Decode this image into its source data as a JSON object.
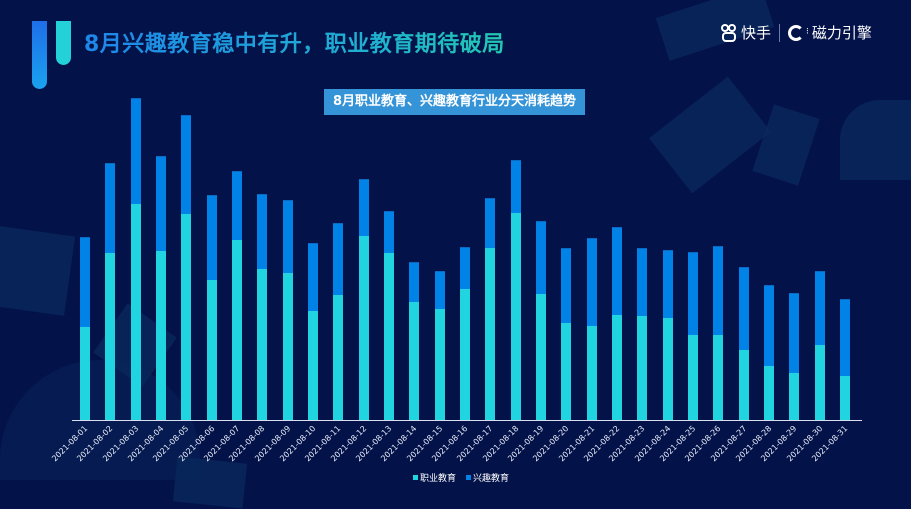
{
  "header": {
    "title": "8月兴趣教育稳中有升，职业教育期待破局",
    "brand_primary": "快手",
    "brand_secondary": "磁力引擎"
  },
  "colors": {
    "background": "#04124a",
    "series_vocational": "#20d4e0",
    "series_interest": "#0082e6",
    "subtitle_bg": "#3593d8",
    "title_gradient_start": "#1e86ea",
    "title_gradient_end": "#22c9b0"
  },
  "legend": {
    "items": [
      {
        "label": "职业教育",
        "color": "#20d4e0"
      },
      {
        "label": "兴趣教育",
        "color": "#0082e6"
      }
    ]
  },
  "chart_data": {
    "type": "bar",
    "stacked": true,
    "title": "8月职业教育、兴趣教育行业分天消耗趋势",
    "xlabel": "",
    "ylabel": "",
    "y_axis_visible": false,
    "grid": false,
    "legend_position": "bottom",
    "unit_note": "No y-axis scale shown; values are relative heights (px above baseline)",
    "categories": [
      "2021-08-01",
      "2021-08-02",
      "2021-08-03",
      "2021-08-04",
      "2021-08-05",
      "2021-08-06",
      "2021-08-07",
      "2021-08-08",
      "2021-08-09",
      "2021-08-10",
      "2021-08-11",
      "2021-08-12",
      "2021-08-13",
      "2021-08-14",
      "2021-08-15",
      "2021-08-16",
      "2021-08-17",
      "2021-08-18",
      "2021-08-19",
      "2021-08-20",
      "2021-08-21",
      "2021-08-22",
      "2021-08-23",
      "2021-08-24",
      "2021-08-25",
      "2021-08-26",
      "2021-08-27",
      "2021-08-28",
      "2021-08-29",
      "2021-08-30",
      "2021-08-31"
    ],
    "series": [
      {
        "name": "职业教育",
        "color": "#20d4e0",
        "values": [
          93,
          167,
          216,
          169,
          206,
          140,
          180,
          151,
          147,
          109,
          125,
          184,
          167,
          118,
          111,
          131,
          172,
          207,
          126,
          97,
          94,
          105,
          104,
          102,
          85,
          85,
          70,
          54,
          47,
          75,
          44
        ]
      },
      {
        "name": "兴趣教育",
        "color": "#0082e6",
        "values": [
          90,
          90,
          106,
          95,
          99,
          85,
          69,
          75,
          73,
          68,
          72,
          57,
          42,
          40,
          38,
          42,
          50,
          53,
          73,
          75,
          88,
          88,
          68,
          68,
          83,
          89,
          83,
          81,
          80,
          74,
          77
        ]
      }
    ]
  }
}
